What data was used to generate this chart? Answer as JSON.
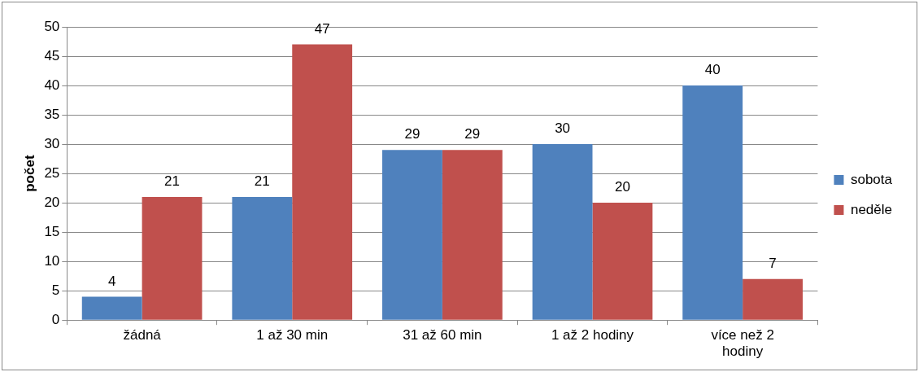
{
  "chart_data": {
    "type": "bar",
    "ylabel": "počet",
    "categories": [
      "žádná",
      "1 až 30 min",
      "31 až 60 min",
      "1 až 2 hodiny",
      "více než 2 hodiny"
    ],
    "series": [
      {
        "name": "sobota",
        "color": "#4f81bd",
        "values": [
          4,
          21,
          29,
          30,
          40
        ]
      },
      {
        "name": "neděle",
        "color": "#c0504d",
        "values": [
          21,
          47,
          29,
          20,
          7
        ]
      }
    ],
    "ylim": [
      0,
      50
    ],
    "yticks": [
      0,
      5,
      10,
      15,
      20,
      25,
      30,
      35,
      40,
      45,
      50
    ],
    "grid": "y",
    "legend": "right",
    "data_labels": true
  }
}
